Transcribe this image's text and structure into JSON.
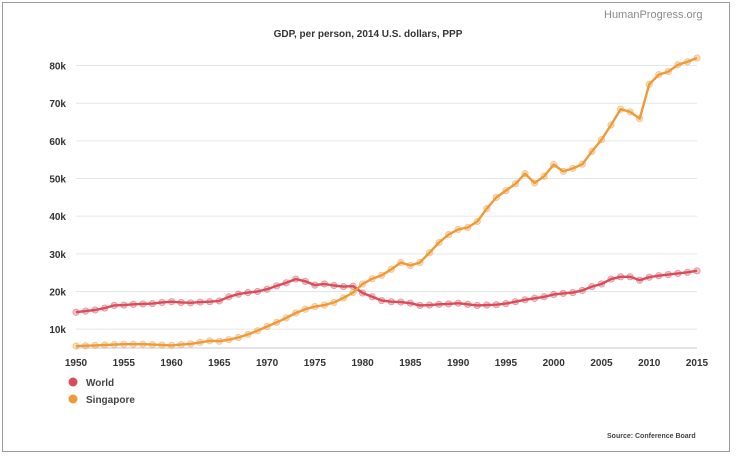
{
  "watermark": "HumanProgress.org",
  "source": "Source: Conference Board",
  "colors": {
    "world": "#d94c5a",
    "singapore": "#ef9a3a",
    "grid": "#e6e6e6",
    "axis": "#c8c8c8"
  },
  "chart_data": {
    "type": "line",
    "title": "GDP, per person, 2014 U.S. dollars, PPP",
    "xlabel": "",
    "ylabel": "",
    "xlim": [
      1950,
      2015
    ],
    "ylim": [
      5000,
      82000
    ],
    "grid": true,
    "legend": "bottom-left",
    "x_ticks": [
      "1950",
      "1955",
      "1960",
      "1965",
      "1970",
      "1975",
      "1980",
      "1985",
      "1990",
      "1995",
      "2000",
      "2005",
      "2010",
      "2015"
    ],
    "x_tick_values": [
      1950,
      1955,
      1960,
      1965,
      1970,
      1975,
      1980,
      1985,
      1990,
      1995,
      2000,
      2005,
      2010,
      2015
    ],
    "y_ticks": [
      "10k",
      "20k",
      "30k",
      "40k",
      "50k",
      "60k",
      "70k",
      "80k"
    ],
    "y_tick_values": [
      10000,
      20000,
      30000,
      40000,
      50000,
      60000,
      70000,
      80000
    ],
    "x": [
      1950,
      1951,
      1952,
      1953,
      1954,
      1955,
      1956,
      1957,
      1958,
      1959,
      1960,
      1961,
      1962,
      1963,
      1964,
      1965,
      1966,
      1967,
      1968,
      1969,
      1970,
      1971,
      1972,
      1973,
      1974,
      1975,
      1976,
      1977,
      1978,
      1979,
      1980,
      1981,
      1982,
      1983,
      1984,
      1985,
      1986,
      1987,
      1988,
      1989,
      1990,
      1991,
      1992,
      1993,
      1994,
      1995,
      1996,
      1997,
      1998,
      1999,
      2000,
      2001,
      2002,
      2003,
      2004,
      2005,
      2006,
      2007,
      2008,
      2009,
      2010,
      2011,
      2012,
      2013,
      2014,
      2015
    ],
    "series": [
      {
        "name": "World",
        "values": [
          14500,
          14800,
          15100,
          15600,
          16300,
          16400,
          16600,
          16700,
          16800,
          17100,
          17300,
          17100,
          17000,
          17200,
          17300,
          17500,
          18600,
          19300,
          19700,
          20000,
          20600,
          21500,
          22300,
          23300,
          22700,
          21700,
          22000,
          21600,
          21300,
          21400,
          19600,
          18600,
          17600,
          17300,
          17200,
          16900,
          16300,
          16400,
          16600,
          16700,
          16900,
          16600,
          16300,
          16400,
          16500,
          16800,
          17300,
          17800,
          18200,
          18600,
          19200,
          19500,
          19700,
          20300,
          21300,
          22000,
          23300,
          23900,
          23900,
          23000,
          23800,
          24200,
          24500,
          24800,
          25100,
          25500
        ]
      },
      {
        "name": "Singapore",
        "values": [
          5500,
          5600,
          5700,
          5800,
          5900,
          6000,
          6000,
          6000,
          5900,
          5800,
          5700,
          5900,
          6100,
          6500,
          6900,
          6800,
          7200,
          7800,
          8600,
          9600,
          10700,
          11800,
          13000,
          14300,
          15300,
          16000,
          16400,
          17100,
          18300,
          19700,
          22000,
          23400,
          24300,
          25900,
          27700,
          26900,
          27700,
          30300,
          33000,
          35100,
          36500,
          37000,
          38600,
          42000,
          45000,
          46800,
          48600,
          51300,
          48800,
          50600,
          53700,
          51900,
          52700,
          53800,
          57200,
          60300,
          64200,
          68400,
          67700,
          65900,
          75000,
          77600,
          78400,
          80200,
          81000,
          82000
        ]
      }
    ]
  }
}
